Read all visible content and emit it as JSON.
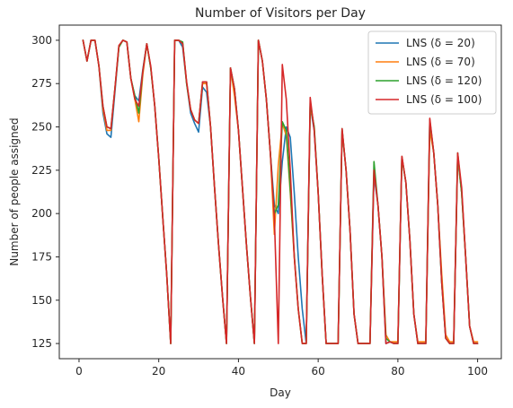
{
  "chart_data": {
    "type": "line",
    "title": "Number of Visitors per Day",
    "xlabel": "Day",
    "ylabel": "Number of people assigned",
    "xlim": [
      -4.95,
      105.95
    ],
    "ylim": [
      116.25,
      308.75
    ],
    "xticks": [
      0,
      20,
      40,
      60,
      80,
      100
    ],
    "yticks": [
      125,
      150,
      175,
      200,
      225,
      250,
      275,
      300
    ],
    "grid": false,
    "legend_position": "upper right",
    "x": [
      1,
      2,
      3,
      4,
      5,
      6,
      7,
      8,
      9,
      10,
      11,
      12,
      13,
      14,
      15,
      16,
      17,
      18,
      19,
      20,
      21,
      22,
      23,
      24,
      25,
      26,
      27,
      28,
      29,
      30,
      31,
      32,
      33,
      34,
      35,
      36,
      37,
      38,
      39,
      40,
      41,
      42,
      43,
      44,
      45,
      46,
      47,
      48,
      49,
      50,
      51,
      52,
      53,
      54,
      55,
      56,
      57,
      58,
      59,
      60,
      61,
      62,
      63,
      64,
      65,
      66,
      67,
      68,
      69,
      70,
      71,
      72,
      73,
      74,
      75,
      76,
      77,
      78,
      79,
      80,
      81,
      82,
      83,
      84,
      85,
      86,
      87,
      88,
      89,
      90,
      91,
      92,
      93,
      94,
      95,
      96,
      97,
      98,
      99,
      100
    ],
    "series": [
      {
        "name": "LNS (δ = 20)",
        "color": "#1f77b4",
        "values": [
          300,
          288,
          300,
          300,
          285,
          258,
          246,
          244,
          270,
          296,
          300,
          299,
          278,
          268,
          265,
          283,
          298,
          284,
          262,
          232,
          198,
          165,
          125,
          300,
          300,
          296,
          275,
          258,
          252,
          247,
          273,
          270,
          250,
          215,
          182,
          152,
          125,
          284,
          272,
          248,
          215,
          182,
          152,
          125,
          300,
          288,
          266,
          235,
          205,
          200,
          230,
          250,
          244,
          212,
          175,
          145,
          125,
          262,
          248,
          212,
          165,
          125,
          125,
          125,
          125,
          248,
          225,
          190,
          142,
          125,
          125,
          125,
          125,
          222,
          205,
          175,
          125,
          126,
          125,
          125,
          233,
          218,
          185,
          142,
          125,
          125,
          125,
          253,
          235,
          205,
          160,
          128,
          125,
          125,
          232,
          212,
          175,
          135,
          125,
          125
        ]
      },
      {
        "name": "LNS (δ = 70)",
        "color": "#ff7f0e",
        "values": [
          300,
          288,
          300,
          300,
          285,
          260,
          248,
          248,
          272,
          296,
          300,
          299,
          278,
          266,
          253,
          280,
          298,
          284,
          262,
          232,
          198,
          165,
          125,
          300,
          300,
          298,
          275,
          260,
          254,
          252,
          275,
          275,
          250,
          215,
          182,
          152,
          125,
          284,
          268,
          248,
          215,
          182,
          152,
          125,
          300,
          288,
          266,
          235,
          188,
          228,
          252,
          245,
          212,
          175,
          145,
          125,
          125,
          262,
          250,
          212,
          165,
          125,
          125,
          125,
          125,
          248,
          225,
          190,
          142,
          125,
          125,
          125,
          125,
          225,
          205,
          175,
          130,
          126,
          126,
          126,
          233,
          218,
          185,
          142,
          126,
          126,
          126,
          248,
          235,
          205,
          165,
          130,
          126,
          126,
          233,
          212,
          175,
          135,
          126,
          126
        ]
      },
      {
        "name": "LNS (δ = 120)",
        "color": "#2ca02c",
        "values": [
          300,
          288,
          300,
          300,
          285,
          262,
          250,
          249,
          272,
          296,
          300,
          299,
          278,
          268,
          258,
          282,
          298,
          284,
          262,
          232,
          198,
          165,
          125,
          300,
          300,
          299,
          275,
          260,
          254,
          252,
          276,
          276,
          250,
          215,
          182,
          152,
          125,
          284,
          272,
          248,
          215,
          182,
          152,
          125,
          300,
          288,
          266,
          235,
          200,
          205,
          253,
          248,
          214,
          176,
          145,
          125,
          125,
          264,
          250,
          212,
          165,
          125,
          125,
          125,
          125,
          249,
          225,
          190,
          142,
          125,
          125,
          125,
          125,
          230,
          205,
          175,
          128,
          126,
          125,
          125,
          232,
          218,
          185,
          142,
          125,
          125,
          125,
          254,
          235,
          205,
          160,
          128,
          125,
          125,
          235,
          212,
          175,
          135,
          125,
          125
        ]
      },
      {
        "name": "LNS (δ = 100)",
        "color": "#d62728",
        "values": [
          300,
          288,
          300,
          300,
          285,
          262,
          250,
          249,
          272,
          297,
          300,
          299,
          278,
          266,
          262,
          282,
          298,
          285,
          262,
          232,
          198,
          165,
          125,
          300,
          300,
          298,
          276,
          260,
          254,
          252,
          276,
          276,
          250,
          215,
          182,
          152,
          125,
          284,
          272,
          248,
          215,
          182,
          152,
          125,
          300,
          288,
          266,
          235,
          198,
          125,
          286,
          266,
          225,
          175,
          145,
          125,
          125,
          267,
          248,
          212,
          165,
          125,
          125,
          125,
          125,
          249,
          225,
          190,
          142,
          125,
          125,
          125,
          125,
          225,
          205,
          175,
          125,
          126,
          125,
          125,
          233,
          218,
          185,
          142,
          125,
          125,
          125,
          255,
          235,
          205,
          160,
          128,
          125,
          125,
          235,
          215,
          175,
          135,
          125,
          125
        ]
      }
    ]
  }
}
